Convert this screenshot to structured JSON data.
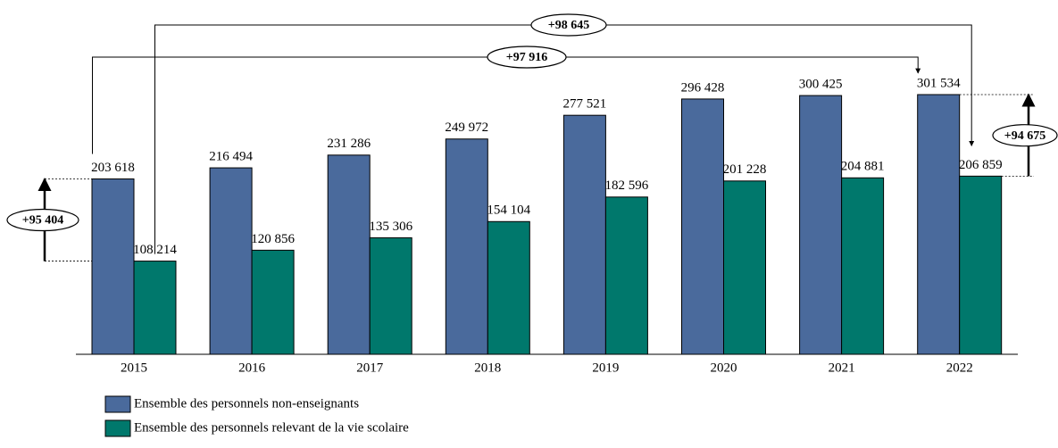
{
  "chart_data": {
    "type": "bar",
    "categories": [
      "2015",
      "2016",
      "2017",
      "2018",
      "2019",
      "2020",
      "2021",
      "2022"
    ],
    "series": [
      {
        "name": "Ensemble des personnels non-enseignants",
        "color": "#4a6a9c",
        "values": [
          203618,
          216494,
          231286,
          249972,
          277521,
          296428,
          300425,
          301534
        ],
        "value_labels": [
          "203 618",
          "216 494",
          "231 286",
          "249 972",
          "277 521",
          "296 428",
          "300 425",
          "301 534"
        ]
      },
      {
        "name": "Ensemble des personnels relevant de la vie scolaire",
        "color": "#00786c",
        "values": [
          108214,
          120856,
          135306,
          154104,
          182596,
          201228,
          204881,
          206859
        ],
        "value_labels": [
          "108 214",
          "120 856",
          "135 306",
          "154 104",
          "182 596",
          "201 228",
          "204 881",
          "206 859"
        ]
      }
    ],
    "annotations": [
      "+95 404",
      "+97 916",
      "+98 645",
      "+94 675"
    ]
  }
}
